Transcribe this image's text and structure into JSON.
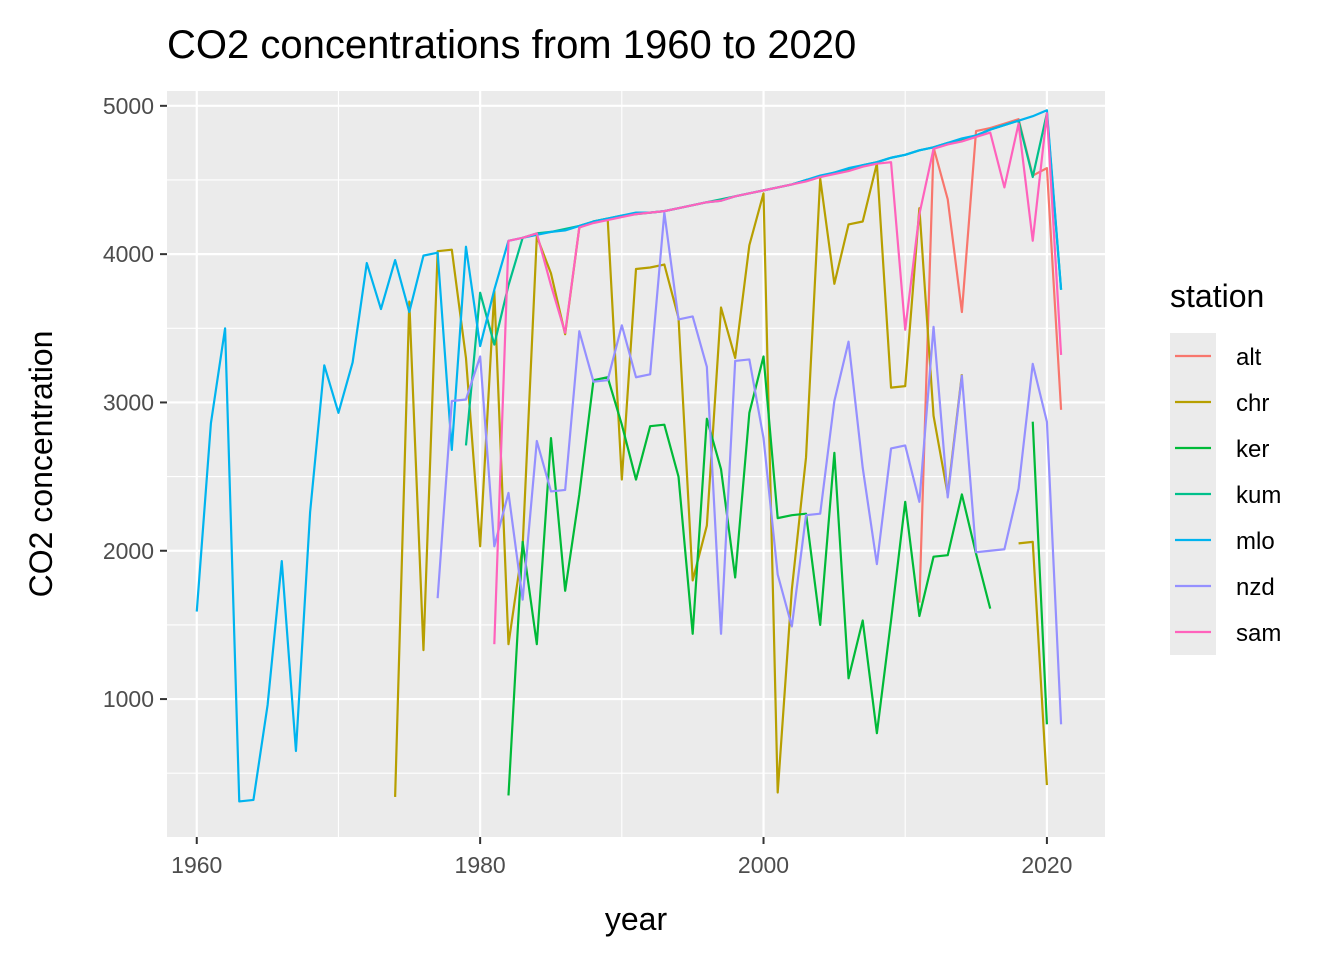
{
  "chart_data": {
    "type": "line",
    "title": "CO2 concentrations from 1960 to 2020",
    "xlabel": "year",
    "ylabel": "CO2 concentration",
    "xlim": [
      1957.9,
      2024.1
    ],
    "ylim": [
      70,
      5100
    ],
    "xticks": [
      1960,
      1980,
      2000,
      2020
    ],
    "yticks": [
      1000,
      2000,
      3000,
      4000,
      5000
    ],
    "grid": true,
    "legend_title": "station",
    "legend_position": "right",
    "series": [
      {
        "name": "alt",
        "color": "#F8766D",
        "x": [
          2011,
          2012,
          2013,
          2014,
          2015,
          2016,
          2017,
          2018,
          2019,
          2020,
          2021
        ],
        "y": [
          1650,
          4720,
          4370,
          3610,
          4830,
          4850,
          4880,
          4910,
          4530,
          4580,
          2950
        ]
      },
      {
        "name": "chr",
        "color": "#B79F00",
        "x": [
          1974,
          1975,
          1976,
          1977,
          1978,
          1979,
          1980,
          1981,
          1982,
          1983,
          1984,
          1985,
          1986,
          1987,
          1988,
          1989,
          1990,
          1991,
          1992,
          1993,
          1994,
          1995,
          1996,
          1997,
          1998,
          1999,
          2000,
          2001,
          2002,
          2003,
          2004,
          2005,
          2006,
          2007,
          2008,
          2009,
          2010,
          2011,
          2012,
          2013,
          2014,
          2015,
          2016,
          2017,
          2018,
          2019,
          2020
        ],
        "y": [
          340,
          3680,
          1330,
          4020,
          4030,
          3300,
          2030,
          3750,
          1370,
          2030,
          4120,
          3870,
          3460,
          4180,
          4220,
          4240,
          2480,
          3900,
          3910,
          3930,
          3570,
          1800,
          2170,
          3640,
          3300,
          4060,
          4410,
          370,
          1740,
          2630,
          4510,
          3800,
          4200,
          4220,
          4610,
          3100,
          3110,
          4310,
          2910,
          2380,
          3190,
          null,
          null,
          null,
          2050,
          2060,
          420
        ]
      },
      {
        "name": "ker",
        "color": "#00BA38",
        "x": [
          1982,
          1983,
          1984,
          1985,
          1986,
          1987,
          1988,
          1989,
          1990,
          1991,
          1992,
          1993,
          1994,
          1995,
          1996,
          1997,
          1998,
          1999,
          2000,
          2001,
          2002,
          2003,
          2004,
          2005,
          2006,
          2007,
          2008,
          2009,
          2010,
          2011,
          2012,
          2013,
          2014,
          2015,
          2016,
          2017,
          2018,
          2019,
          2020
        ],
        "y": [
          350,
          2060,
          1370,
          2760,
          1730,
          2380,
          3150,
          3170,
          2850,
          2480,
          2840,
          2850,
          2500,
          1440,
          2890,
          2550,
          1820,
          2930,
          3310,
          2220,
          2240,
          2250,
          1500,
          2660,
          1140,
          1530,
          770,
          1530,
          2330,
          1560,
          1960,
          1970,
          2380,
          1980,
          1610,
          null,
          null,
          2870,
          830
        ]
      },
      {
        "name": "kum",
        "color": "#00C08B",
        "x": [
          1979,
          1980,
          1981,
          1982,
          1983,
          1984,
          1985,
          1986,
          1987,
          1988,
          1989,
          1990,
          1991,
          1992,
          1993,
          1994,
          1995,
          1996,
          1997,
          1998,
          1999,
          2000,
          2001,
          2002,
          2003,
          2004,
          2005,
          2006,
          2007,
          2008,
          2009,
          2010,
          2011,
          2012,
          2013,
          2014,
          2015,
          2016,
          2017,
          2018,
          2019,
          2020,
          2021
        ],
        "y": [
          2710,
          3740,
          3390,
          3790,
          4110,
          4140,
          4150,
          4170,
          4190,
          4220,
          4240,
          4260,
          4270,
          4280,
          4290,
          4310,
          4330,
          4350,
          4370,
          4390,
          4410,
          4430,
          4450,
          4470,
          4500,
          4520,
          4550,
          4570,
          4600,
          4620,
          4650,
          4670,
          4700,
          4720,
          4750,
          4770,
          4800,
          4840,
          4870,
          4900,
          4520,
          4950,
          3760
        ]
      },
      {
        "name": "mlo",
        "color": "#00B4EF",
        "x": [
          1960,
          1961,
          1962,
          1963,
          1964,
          1965,
          1966,
          1967,
          1968,
          1969,
          1970,
          1971,
          1972,
          1973,
          1974,
          1975,
          1976,
          1977,
          1978,
          1979,
          1980,
          1981,
          1982,
          1983,
          1984,
          1985,
          1986,
          1987,
          1988,
          1989,
          1990,
          1991,
          1992,
          1993,
          1994,
          1995,
          1996,
          1997,
          1998,
          1999,
          2000,
          2001,
          2002,
          2003,
          2004,
          2005,
          2006,
          2007,
          2008,
          2009,
          2010,
          2011,
          2012,
          2013,
          2014,
          2015,
          2016,
          2017,
          2018,
          2019,
          2020,
          2021
        ],
        "y": [
          1590,
          2860,
          3500,
          310,
          320,
          960,
          1930,
          650,
          2260,
          3250,
          2930,
          3270,
          3940,
          3630,
          3960,
          3610,
          3990,
          4010,
          2680,
          4050,
          3380,
          3760,
          4090,
          4110,
          4130,
          4150,
          4160,
          4190,
          4220,
          4240,
          4260,
          4280,
          4280,
          4290,
          4310,
          4330,
          4350,
          4360,
          4390,
          4410,
          4430,
          4450,
          4470,
          4500,
          4530,
          4550,
          4580,
          4600,
          4620,
          4650,
          4670,
          4700,
          4720,
          4750,
          4780,
          4800,
          4840,
          4870,
          4900,
          4930,
          4970,
          3760
        ]
      },
      {
        "name": "nzd",
        "color": "#9590FF",
        "x": [
          1977,
          1978,
          1979,
          1980,
          1981,
          1982,
          1983,
          1984,
          1985,
          1986,
          1987,
          1988,
          1989,
          1990,
          1991,
          1992,
          1993,
          1994,
          1995,
          1996,
          1997,
          1998,
          1999,
          2000,
          2001,
          2002,
          2003,
          2004,
          2005,
          2006,
          2007,
          2008,
          2009,
          2010,
          2011,
          2012,
          2013,
          2014,
          2015,
          2016,
          2017,
          2018,
          2019,
          2020,
          2021
        ],
        "y": [
          1680,
          3010,
          3020,
          3310,
          2030,
          2390,
          1670,
          2740,
          2400,
          2410,
          3480,
          3140,
          3150,
          3520,
          3170,
          3190,
          4280,
          3560,
          3580,
          3240,
          1440,
          3280,
          3290,
          2760,
          1840,
          1490,
          2240,
          2250,
          3010,
          3410,
          2560,
          1910,
          2690,
          2710,
          2330,
          3510,
          2360,
          3180,
          1990,
          2000,
          2010,
          2420,
          3260,
          2870,
          830
        ]
      },
      {
        "name": "sam",
        "color": "#FF62BC",
        "x": [
          1981,
          1982,
          1983,
          1984,
          1985,
          1986,
          1987,
          1988,
          1989,
          1990,
          1991,
          1992,
          1993,
          1994,
          1995,
          1996,
          1997,
          1998,
          1999,
          2000,
          2001,
          2002,
          2003,
          2004,
          2005,
          2006,
          2007,
          2008,
          2009,
          2010,
          2011,
          2012,
          2013,
          2014,
          2015,
          2016,
          2017,
          2018,
          2019,
          2020,
          2021
        ],
        "y": [
          1370,
          4090,
          4110,
          4140,
          3790,
          3470,
          4180,
          4210,
          4230,
          4250,
          4270,
          4280,
          4290,
          4310,
          4330,
          4350,
          4360,
          4390,
          4410,
          4430,
          4450,
          4470,
          4490,
          4520,
          4540,
          4560,
          4590,
          4610,
          4620,
          3490,
          4270,
          4710,
          4740,
          4760,
          4790,
          4820,
          4450,
          4880,
          4090,
          4950,
          3320
        ]
      }
    ]
  }
}
